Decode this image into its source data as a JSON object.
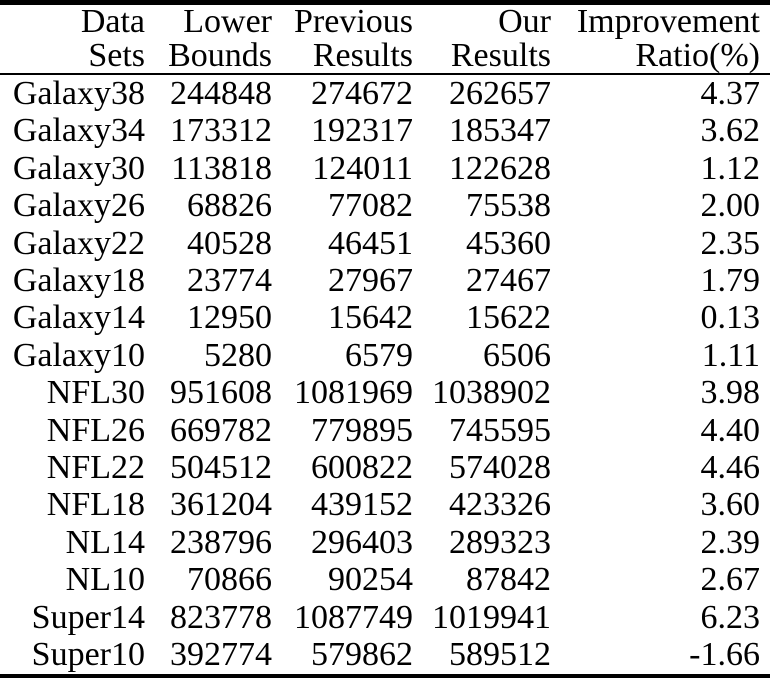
{
  "chart_data": {
    "type": "table",
    "title": "",
    "columns": [
      {
        "key": "dataset",
        "line1": "Data",
        "line2": "Sets"
      },
      {
        "key": "lower-bounds",
        "line1": "Lower",
        "line2": "Bounds"
      },
      {
        "key": "previous-results",
        "line1": "Previous",
        "line2": "Results"
      },
      {
        "key": "our-results",
        "line1": "Our",
        "line2": "Results"
      },
      {
        "key": "improvement-ratio",
        "line1": "Improvement",
        "line2": "Ratio(%)"
      }
    ],
    "rows": [
      [
        "Galaxy38",
        "244848",
        "274672",
        "262657",
        "4.37"
      ],
      [
        "Galaxy34",
        "173312",
        "192317",
        "185347",
        "3.62"
      ],
      [
        "Galaxy30",
        "113818",
        "124011",
        "122628",
        "1.12"
      ],
      [
        "Galaxy26",
        "68826",
        "77082",
        "75538",
        "2.00"
      ],
      [
        "Galaxy22",
        "40528",
        "46451",
        "45360",
        "2.35"
      ],
      [
        "Galaxy18",
        "23774",
        "27967",
        "27467",
        "1.79"
      ],
      [
        "Galaxy14",
        "12950",
        "15642",
        "15622",
        "0.13"
      ],
      [
        "Galaxy10",
        "5280",
        "6579",
        "6506",
        "1.11"
      ],
      [
        "NFL30",
        "951608",
        "1081969",
        "1038902",
        "3.98"
      ],
      [
        "NFL26",
        "669782",
        "779895",
        "745595",
        "4.40"
      ],
      [
        "NFL22",
        "504512",
        "600822",
        "574028",
        "4.46"
      ],
      [
        "NFL18",
        "361204",
        "439152",
        "423326",
        "3.60"
      ],
      [
        "NL14",
        "238796",
        "296403",
        "289323",
        "2.39"
      ],
      [
        "NL10",
        "70866",
        "90254",
        "87842",
        "2.67"
      ],
      [
        "Super14",
        "823778",
        "1087749",
        "1019941",
        "6.23"
      ],
      [
        "Super10",
        "392774",
        "579862",
        "589512",
        "-1.66"
      ]
    ],
    "layout": {
      "legend": "none",
      "grid": "off",
      "column_alignment": [
        "right",
        "right",
        "right",
        "right",
        "right"
      ]
    },
    "colors": {
      "text": "#000000",
      "background": "#ffffff",
      "rule": "#000000"
    }
  }
}
